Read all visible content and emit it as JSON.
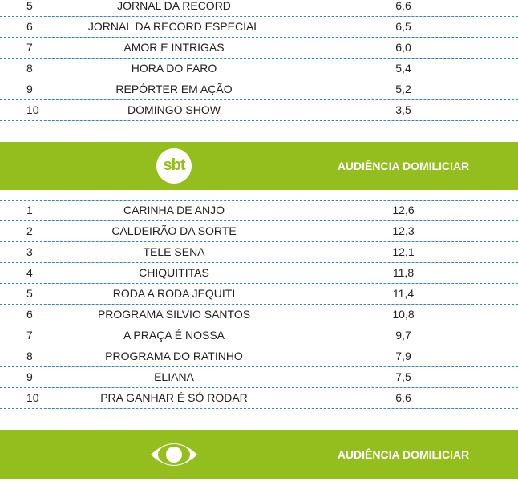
{
  "sections": [
    {
      "rows": [
        [
          "5",
          "JORNAL DA RECORD",
          "6,6"
        ],
        [
          "6",
          "JORNAL DA RECORD ESPECIAL",
          "6,5"
        ],
        [
          "7",
          "AMOR E INTRIGAS",
          "6,0"
        ],
        [
          "8",
          "HORA DO FARO",
          "5,4"
        ],
        [
          "9",
          "REPÓRTER EM AÇÃO",
          "5,2"
        ],
        [
          "10",
          "DOMINGO SHOW",
          "3,5"
        ]
      ]
    },
    {
      "header": {
        "logo": "sbt",
        "title": "AUDIÊNCIA DOMILICIAR"
      },
      "rows": [
        [
          "1",
          "CARINHA DE ANJO",
          "12,6"
        ],
        [
          "2",
          "CALDEIRÃO DA SORTE",
          "12,3"
        ],
        [
          "3",
          "TELE SENA",
          "12,1"
        ],
        [
          "4",
          "CHIQUITITAS",
          "11,8"
        ],
        [
          "5",
          "RODA A RODA JEQUITI",
          "11,4"
        ],
        [
          "6",
          "PROGRAMA SILVIO SANTOS",
          "10,8"
        ],
        [
          "7",
          "A PRAÇA É NOSSA",
          "9,7"
        ],
        [
          "8",
          "PROGRAMA DO RATINHO",
          "7,9"
        ],
        [
          "9",
          "ELIANA",
          "7,5"
        ],
        [
          "10",
          "PRA GANHAR É SÓ RODAR",
          "6,6"
        ]
      ]
    },
    {
      "header": {
        "title": "AUDIÊNCIA DOMILICIAR"
      }
    }
  ]
}
